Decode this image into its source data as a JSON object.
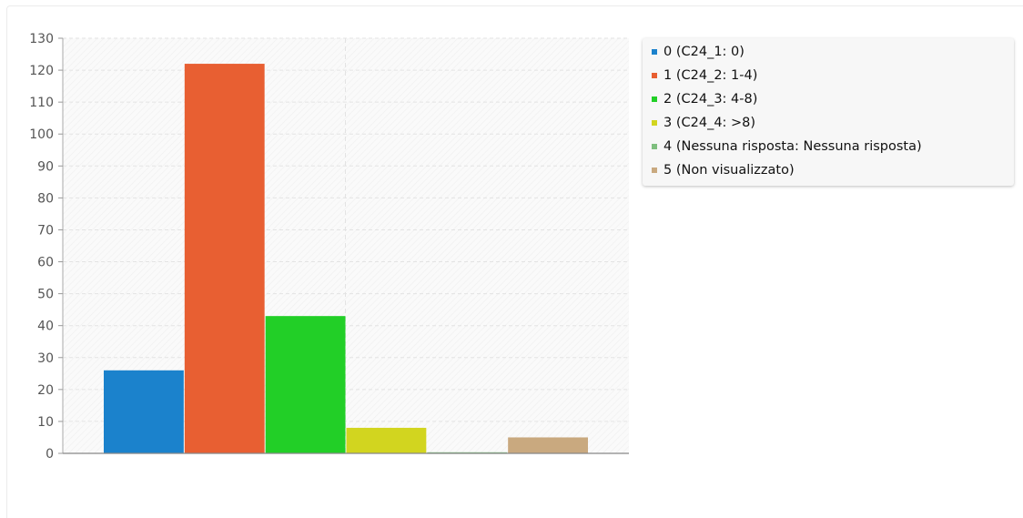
{
  "chart_data": {
    "type": "bar",
    "categories": [
      "0",
      "1",
      "2",
      "3",
      "4",
      "5"
    ],
    "values": [
      26,
      122,
      43,
      8,
      0,
      5
    ],
    "colors": [
      "#1b82cc",
      "#e85f32",
      "#22cf27",
      "#d2d51f",
      "#7fbf7f",
      "#c9a97f"
    ],
    "legend": [
      "0 (C24_1: 0)",
      "1 (C24_2: 1-4)",
      "2 (C24_3: 4-8)",
      "3 (C24_4: >8)",
      "4 (Nessuna risposta: Nessuna risposta)",
      "5 (Non visualizzato)"
    ],
    "yticks": [
      "0",
      "10",
      "20",
      "30",
      "40",
      "50",
      "60",
      "70",
      "80",
      "90",
      "100",
      "110",
      "120",
      "130"
    ],
    "ylim": [
      0,
      130
    ],
    "title": "",
    "xlabel": "",
    "ylabel": "",
    "grid": true,
    "legend_position": "right-top"
  }
}
